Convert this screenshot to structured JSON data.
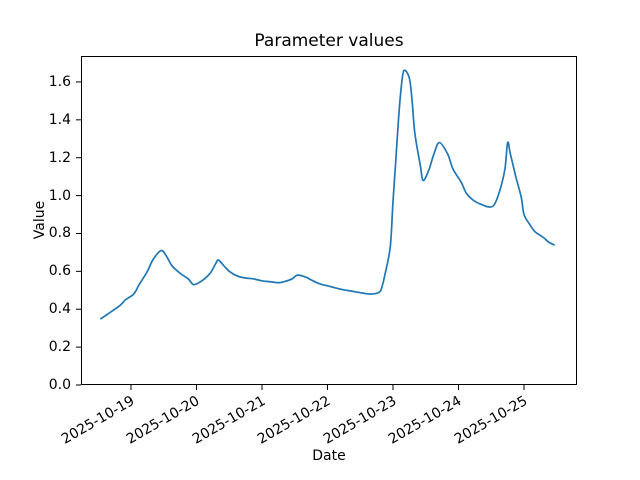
{
  "figure": {
    "background": "#ffffff",
    "text_color": "#000000"
  },
  "chart_data": {
    "type": "line",
    "title": "Parameter values",
    "xlabel": "Date",
    "ylabel": "Value",
    "grid": false,
    "legend": false,
    "x_epoch": "2025-10-19T00:00",
    "xlim_days": [
      -0.763,
      6.809
    ],
    "ylim": [
      0,
      1.737
    ],
    "x_ticks": [
      {
        "label": "2025-10-19",
        "day_offset": 0
      },
      {
        "label": "2025-10-20",
        "day_offset": 1
      },
      {
        "label": "2025-10-21",
        "day_offset": 2
      },
      {
        "label": "2025-10-22",
        "day_offset": 3
      },
      {
        "label": "2025-10-23",
        "day_offset": 4
      },
      {
        "label": "2025-10-24",
        "day_offset": 5
      },
      {
        "label": "2025-10-25",
        "day_offset": 6
      }
    ],
    "y_ticks": [
      {
        "label": "0.0",
        "value": 0.0
      },
      {
        "label": "0.2",
        "value": 0.2
      },
      {
        "label": "0.4",
        "value": 0.4
      },
      {
        "label": "0.6",
        "value": 0.6
      },
      {
        "label": "0.8",
        "value": 0.8
      },
      {
        "label": "1.0",
        "value": 1.0
      },
      {
        "label": "1.2",
        "value": 1.2
      },
      {
        "label": "1.4",
        "value": 1.4
      },
      {
        "label": "1.6",
        "value": 1.6
      }
    ],
    "series": [
      {
        "name": "parameter-values",
        "color": "#1f77b4",
        "x": [
          "2025-10-18T13:00",
          "2025-10-18T16:00",
          "2025-10-18T20:00",
          "2025-10-18T22:00",
          "2025-10-19T01:00",
          "2025-10-19T03:00",
          "2025-10-19T06:00",
          "2025-10-19T08:00",
          "2025-10-19T11:00",
          "2025-10-19T13:00",
          "2025-10-19T15:00",
          "2025-10-19T18:00",
          "2025-10-19T21:00",
          "2025-10-19T23:00",
          "2025-10-20T02:00",
          "2025-10-20T05:00",
          "2025-10-20T07:00",
          "2025-10-20T08:00",
          "2025-10-20T10:00",
          "2025-10-20T12:00",
          "2025-10-20T15:00",
          "2025-10-20T18:00",
          "2025-10-20T21:00",
          "2025-10-21T00:00",
          "2025-10-21T03:00",
          "2025-10-21T06:00",
          "2025-10-21T08:00",
          "2025-10-21T11:00",
          "2025-10-21T13:00",
          "2025-10-21T16:00",
          "2025-10-21T18:00",
          "2025-10-21T21:00",
          "2025-10-22T01:00",
          "2025-10-22T05:00",
          "2025-10-22T09:00",
          "2025-10-22T13:00",
          "2025-10-22T16:00",
          "2025-10-22T19:00",
          "2025-10-22T20:00",
          "2025-10-22T21:00",
          "2025-10-22T23:00",
          "2025-10-23T00:00",
          "2025-10-23T01:00",
          "2025-10-23T02:00",
          "2025-10-23T03:00",
          "2025-10-23T04:00",
          "2025-10-23T06:00",
          "2025-10-23T07:00",
          "2025-10-23T08:00",
          "2025-10-23T10:00",
          "2025-10-23T11:00",
          "2025-10-23T13:00",
          "2025-10-23T15:00",
          "2025-10-23T17:00",
          "2025-10-23T20:00",
          "2025-10-23T22:00",
          "2025-10-24T01:00",
          "2025-10-24T03:00",
          "2025-10-24T06:00",
          "2025-10-24T09:00",
          "2025-10-24T11:00",
          "2025-10-24T13:00",
          "2025-10-24T15:00",
          "2025-10-24T17:00",
          "2025-10-24T18:00",
          "2025-10-24T19:00",
          "2025-10-24T21:00",
          "2025-10-24T23:00",
          "2025-10-25T00:00",
          "2025-10-25T02:00",
          "2025-10-25T04:00",
          "2025-10-25T07:00",
          "2025-10-25T09:00",
          "2025-10-25T11:00"
        ],
        "y": [
          0.35,
          0.38,
          0.42,
          0.45,
          0.48,
          0.53,
          0.6,
          0.66,
          0.71,
          0.68,
          0.63,
          0.59,
          0.56,
          0.53,
          0.55,
          0.59,
          0.64,
          0.66,
          0.63,
          0.6,
          0.575,
          0.565,
          0.56,
          0.55,
          0.545,
          0.54,
          0.545,
          0.56,
          0.58,
          0.57,
          0.555,
          0.535,
          0.52,
          0.505,
          0.495,
          0.485,
          0.48,
          0.49,
          0.52,
          0.58,
          0.73,
          0.97,
          1.18,
          1.4,
          1.57,
          1.66,
          1.62,
          1.5,
          1.33,
          1.16,
          1.08,
          1.13,
          1.22,
          1.28,
          1.22,
          1.14,
          1.07,
          1.01,
          0.97,
          0.95,
          0.94,
          0.95,
          1.02,
          1.14,
          1.28,
          1.22,
          1.1,
          0.99,
          0.9,
          0.85,
          0.81,
          0.78,
          0.755,
          0.74
        ]
      }
    ]
  }
}
